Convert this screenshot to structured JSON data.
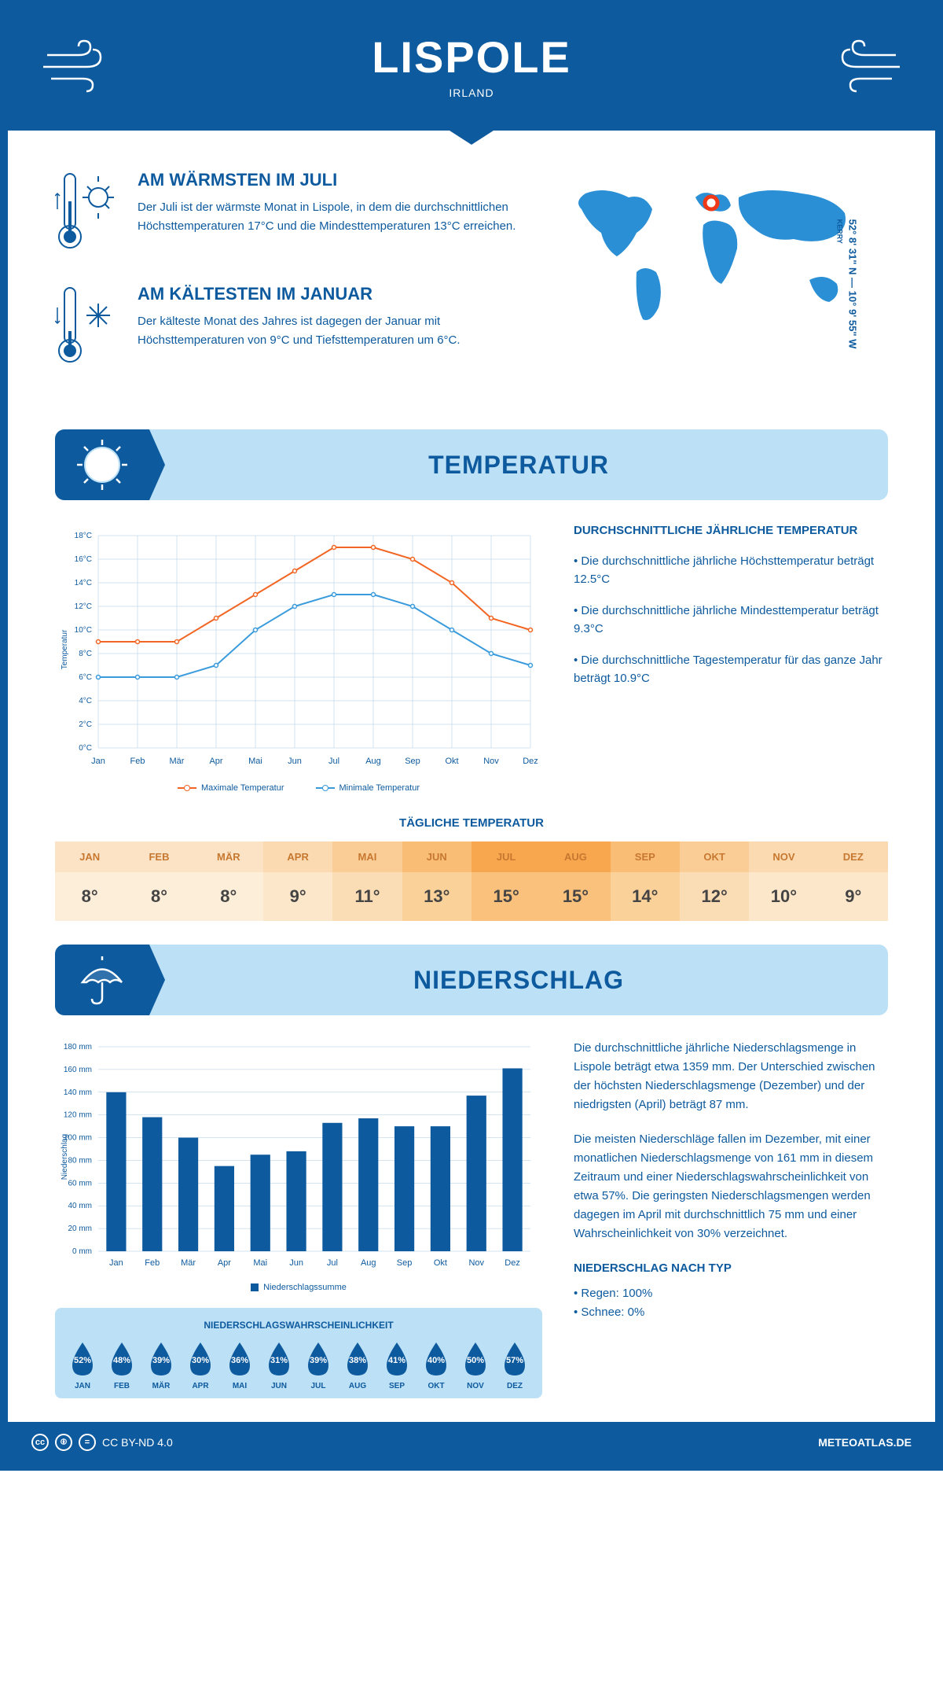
{
  "header": {
    "title": "LISPOLE",
    "subtitle": "IRLAND"
  },
  "coords": {
    "lat": "52° 8' 31\" N",
    "lon": "10° 9' 55\" W",
    "region": "KERRY"
  },
  "intro": {
    "warm": {
      "title": "AM WÄRMSTEN IM JULI",
      "text": "Der Juli ist der wärmste Monat in Lispole, in dem die durchschnittlichen Höchsttemperaturen 17°C und die Mindesttemperaturen 13°C erreichen."
    },
    "cold": {
      "title": "AM KÄLTESTEN IM JANUAR",
      "text": "Der kälteste Monat des Jahres ist dagegen der Januar mit Höchsttemperaturen von 9°C und Tiefsttemperaturen um 6°C."
    }
  },
  "sections": {
    "temp": "TEMPERATUR",
    "precip": "NIEDERSCHLAG"
  },
  "months": [
    "Jan",
    "Feb",
    "Mär",
    "Apr",
    "Mai",
    "Jun",
    "Jul",
    "Aug",
    "Sep",
    "Okt",
    "Nov",
    "Dez"
  ],
  "months_upper": [
    "JAN",
    "FEB",
    "MÄR",
    "APR",
    "MAI",
    "JUN",
    "JUL",
    "AUG",
    "SEP",
    "OKT",
    "NOV",
    "DEZ"
  ],
  "temp_chart": {
    "type": "line",
    "ylabel": "Temperatur",
    "ylim": [
      0,
      18
    ],
    "ytick_step": 2,
    "ytick_suffix": "°C",
    "max_series": {
      "label": "Maximale Temperatur",
      "color": "#f26522",
      "values": [
        9,
        9,
        9,
        11,
        13,
        15,
        17,
        17,
        16,
        14,
        11,
        10
      ]
    },
    "min_series": {
      "label": "Minimale Temperatur",
      "color": "#3a9bdc",
      "values": [
        6,
        6,
        6,
        7,
        10,
        12,
        13,
        13,
        12,
        10,
        8,
        7
      ]
    },
    "grid_color": "#a8c8e0",
    "background": "#ffffff",
    "line_width": 2,
    "marker_size": 5
  },
  "temp_info": {
    "heading": "DURCHSCHNITTLICHE JÄHRLICHE TEMPERATUR",
    "bullet1": "• Die durchschnittliche jährliche Höchsttemperatur beträgt 12.5°C",
    "bullet2": "• Die durchschnittliche jährliche Mindesttemperatur beträgt 9.3°C",
    "bullet3": "• Die durchschnittliche Tagestemperatur für das ganze Jahr beträgt 10.9°C"
  },
  "daily_temp": {
    "heading": "TÄGLICHE TEMPERATUR",
    "values": [
      "8°",
      "8°",
      "8°",
      "9°",
      "11°",
      "13°",
      "15°",
      "15°",
      "14°",
      "12°",
      "10°",
      "9°"
    ],
    "header_colors": [
      "#fce3c5",
      "#fce3c5",
      "#fce3c5",
      "#fcdab1",
      "#fbcd96",
      "#fabd76",
      "#f8a74f",
      "#f8a74f",
      "#fabd76",
      "#fbcd96",
      "#fcdab1",
      "#fcdab1"
    ],
    "value_colors": [
      "#fdeed9",
      "#fdeed9",
      "#fdeed9",
      "#fce7cb",
      "#fbddb5",
      "#fad199",
      "#f9c17b",
      "#f9c17b",
      "#fad199",
      "#fbddb5",
      "#fce7cb",
      "#fce7cb"
    ]
  },
  "precip_chart": {
    "type": "bar",
    "ylabel": "Niederschlag",
    "ylim": [
      0,
      180
    ],
    "ytick_step": 20,
    "ytick_suffix": " mm",
    "values": [
      140,
      118,
      100,
      75,
      85,
      88,
      113,
      117,
      110,
      110,
      137,
      161
    ],
    "bar_color": "#0d5a9e",
    "grid_color": "#a8c8e0",
    "legend_label": "Niederschlagssumme"
  },
  "precip_text": {
    "p1": "Die durchschnittliche jährliche Niederschlagsmenge in Lispole beträgt etwa 1359 mm. Der Unterschied zwischen der höchsten Niederschlagsmenge (Dezember) und der niedrigsten (April) beträgt 87 mm.",
    "p2": "Die meisten Niederschläge fallen im Dezember, mit einer monatlichen Niederschlagsmenge von 161 mm in diesem Zeitraum und einer Niederschlagswahrscheinlichkeit von etwa 57%. Die geringsten Niederschlagsmengen werden dagegen im April mit durchschnittlich 75 mm und einer Wahrscheinlichkeit von 30% verzeichnet.",
    "type_heading": "NIEDERSCHLAG NACH TYP",
    "type1": "• Regen: 100%",
    "type2": "• Schnee: 0%"
  },
  "prob": {
    "heading": "NIEDERSCHLAGSWAHRSCHEINLICHKEIT",
    "values": [
      "52%",
      "48%",
      "39%",
      "30%",
      "36%",
      "31%",
      "39%",
      "38%",
      "41%",
      "40%",
      "50%",
      "57%"
    ],
    "drop_color": "#0d5a9e"
  },
  "footer": {
    "license": "CC BY-ND 4.0",
    "site": "METEOATLAS.DE"
  },
  "colors": {
    "primary": "#0d5a9e",
    "banner_bg": "#bce0f5",
    "orange": "#f26522",
    "lightblue": "#3a9bdc"
  }
}
